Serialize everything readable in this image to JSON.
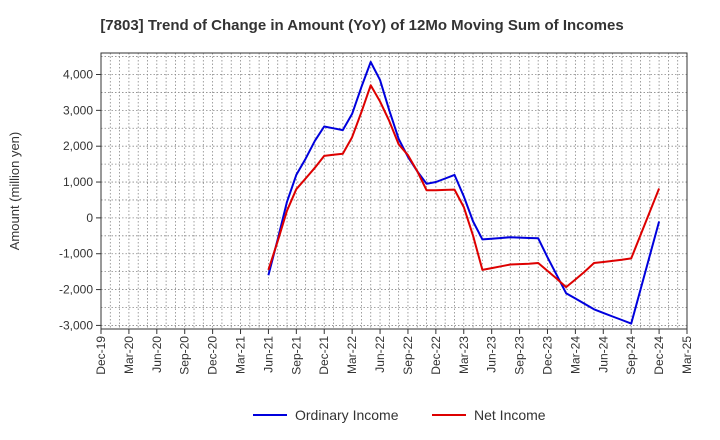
{
  "chart_data": {
    "type": "line",
    "title": "[7803]  Trend of Change in Amount (YoY) of 12Mo Moving Sum of Incomes",
    "xlabel": "",
    "ylabel": "Amount (million yen)",
    "ylim": [
      -3100,
      4600
    ],
    "yticks": [
      -3000,
      -2000,
      -1000,
      0,
      1000,
      2000,
      3000,
      4000
    ],
    "ytick_labels": [
      "-3,000",
      "-2,000",
      "-1,000",
      "0",
      "1,000",
      "2,000",
      "3,000",
      "4,000"
    ],
    "xticks": [
      "Dec-19",
      "Mar-20",
      "Jun-20",
      "Sep-20",
      "Dec-20",
      "Mar-21",
      "Jun-21",
      "Sep-21",
      "Dec-21",
      "Mar-22",
      "Jun-22",
      "Sep-22",
      "Dec-22",
      "Mar-23",
      "Jun-23",
      "Sep-23",
      "Dec-23",
      "Mar-24",
      "Jun-24",
      "Sep-24",
      "Dec-24",
      "Mar-25"
    ],
    "grid": true,
    "legend_position": "bottom",
    "x": [
      "Jun-21",
      "Jul-21",
      "Aug-21",
      "Sep-21",
      "Oct-21",
      "Nov-21",
      "Dec-21",
      "Jan-22",
      "Feb-22",
      "Mar-22",
      "Apr-22",
      "May-22",
      "Jun-22",
      "Jul-22",
      "Aug-22",
      "Sep-22",
      "Oct-22",
      "Nov-22",
      "Dec-22",
      "Jan-23",
      "Feb-23",
      "Mar-23",
      "Apr-23",
      "May-23",
      "Jun-23",
      "Jul-23",
      "Aug-23",
      "Sep-23",
      "Oct-23",
      "Nov-23",
      "Dec-23",
      "Jan-24",
      "Feb-24",
      "Mar-24",
      "Apr-24",
      "May-24",
      "Jun-24",
      "Jul-24",
      "Aug-24",
      "Sep-24",
      "Oct-24",
      "Nov-24",
      "Dec-24"
    ],
    "series": [
      {
        "name": "Ordinary Income",
        "color": "#0000dd",
        "values": [
          -1600,
          -600,
          450,
          1200,
          1650,
          2150,
          2550,
          2500,
          2450,
          2900,
          3650,
          4350,
          3850,
          3000,
          2200,
          1700,
          1300,
          950,
          1000,
          1100,
          1200,
          600,
          -100,
          -600,
          -580,
          -560,
          -540,
          -550,
          -560,
          -570,
          -1100,
          -1600,
          -2100,
          -2250,
          -2400,
          -2550,
          -2650,
          -2750,
          -2850,
          -2950,
          -2000,
          -1050,
          -100
        ]
      },
      {
        "name": "Net Income",
        "color": "#dd0000",
        "values": [
          -1450,
          -650,
          200,
          800,
          1100,
          1400,
          1730,
          1760,
          1790,
          2250,
          2950,
          3700,
          3250,
          2700,
          2050,
          1750,
          1300,
          770,
          770,
          780,
          790,
          300,
          -500,
          -1450,
          -1400,
          -1350,
          -1300,
          -1290,
          -1280,
          -1260,
          -1480,
          -1700,
          -1930,
          -1720,
          -1500,
          -1260,
          -1230,
          -1200,
          -1170,
          -1130,
          -480,
          170,
          820
        ]
      }
    ]
  }
}
